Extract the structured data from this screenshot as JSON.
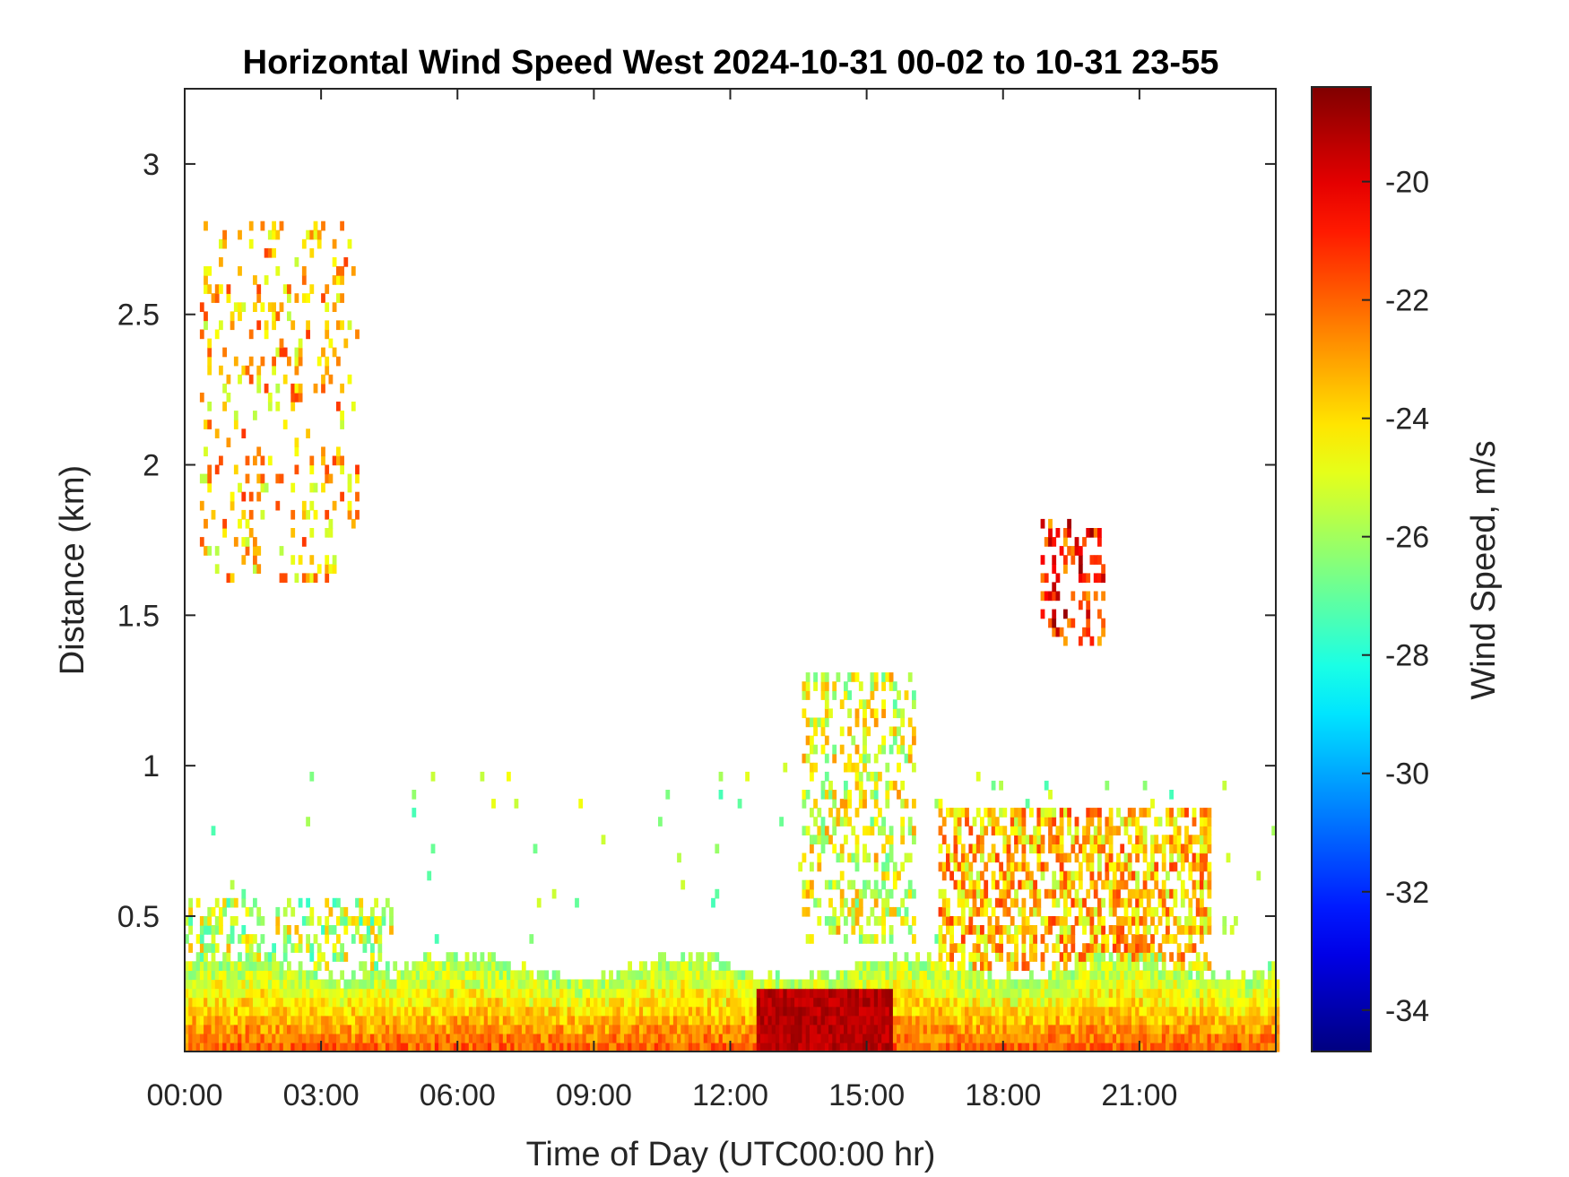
{
  "chart_data": {
    "type": "heatmap",
    "title": "Horizontal Wind Speed West 2024-10-31 00-02 to 10-31 23-55",
    "xlabel": "Time of Day (UTC00:00 hr)",
    "ylabel": "Distance (km)",
    "colorbar_label": "Wind Speed, m/s",
    "xlim_hours": [
      0,
      24
    ],
    "ylim_km": [
      0.05,
      3.25
    ],
    "x_ticks": [
      {
        "value": 0,
        "label": "00:00"
      },
      {
        "value": 3,
        "label": "03:00"
      },
      {
        "value": 6,
        "label": "06:00"
      },
      {
        "value": 9,
        "label": "09:00"
      },
      {
        "value": 12,
        "label": "12:00"
      },
      {
        "value": 15,
        "label": "15:00"
      },
      {
        "value": 18,
        "label": "18:00"
      },
      {
        "value": 21,
        "label": "21:00"
      }
    ],
    "y_ticks": [
      {
        "value": 0.5,
        "label": "0.5"
      },
      {
        "value": 1,
        "label": "1"
      },
      {
        "value": 1.5,
        "label": "1.5"
      },
      {
        "value": 2,
        "label": "2"
      },
      {
        "value": 2.5,
        "label": "2.5"
      },
      {
        "value": 3,
        "label": "3"
      }
    ],
    "colorbar_range": [
      -34.7,
      -18.4
    ],
    "colorbar_ticks": [
      {
        "value": -20,
        "label": "-20"
      },
      {
        "value": -22,
        "label": "-22"
      },
      {
        "value": -24,
        "label": "-24"
      },
      {
        "value": -26,
        "label": "-26"
      },
      {
        "value": -28,
        "label": "-28"
      },
      {
        "value": -30,
        "label": "-30"
      },
      {
        "value": -32,
        "label": "-32"
      },
      {
        "value": -34,
        "label": "-34"
      }
    ],
    "colormap": "jet",
    "grid": false,
    "cell_hours": 0.0833,
    "cell_km": 0.03,
    "regions": [
      {
        "name": "surface layer",
        "t": [
          0,
          24
        ],
        "z_top": [
          0.28,
          0.35
        ],
        "value_bottom": -22.0,
        "value_top": -26.0
      },
      {
        "name": "morning low",
        "t": [
          0,
          4.5
        ],
        "z": [
          0.3,
          0.55
        ],
        "value": -25.5
      },
      {
        "name": "afternoon core",
        "t": [
          12.5,
          15.5
        ],
        "z": [
          0.05,
          0.25
        ],
        "value": -19.3
      },
      {
        "name": "midday plume",
        "t": [
          13.5,
          16
        ],
        "z": [
          0.4,
          1.3
        ],
        "value": -25.0
      },
      {
        "name": "evening column",
        "t": [
          16.5,
          22.5
        ],
        "z": [
          0.3,
          0.85
        ],
        "value": -23.5
      },
      {
        "name": "evening aloft",
        "t": [
          18.8,
          20.2
        ],
        "z": [
          1.4,
          1.8
        ],
        "value": -21.0
      },
      {
        "name": "night aloft",
        "t": [
          0.3,
          3.8
        ],
        "z": [
          1.6,
          2.8
        ],
        "value": -23.5
      }
    ]
  }
}
